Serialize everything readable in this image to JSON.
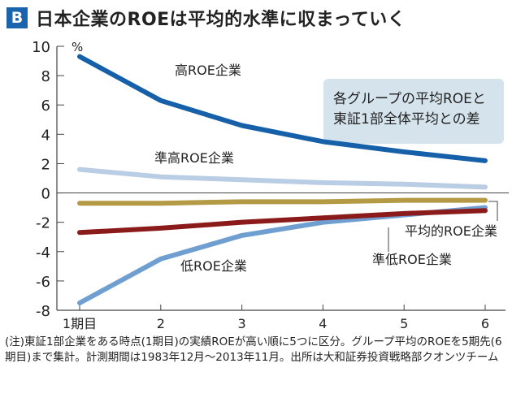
{
  "header": {
    "badge": "B",
    "title": "日本企業のROEは平均的水準に収まっていく"
  },
  "chart_data": {
    "type": "line",
    "title": "日本企業のROEは平均的水準に収まっていく",
    "ylabel": "%",
    "xlabel": "",
    "categories": [
      "1期目",
      "2",
      "3",
      "4",
      "5",
      "6"
    ],
    "ylim": [
      -8,
      10
    ],
    "yticks": [
      10,
      8,
      6,
      4,
      2,
      0,
      -2,
      -4,
      -6,
      -8
    ],
    "grid": false,
    "annotation": "各グループの平均ROEと東証1部全体平均との差",
    "series": [
      {
        "name": "高ROE企業",
        "color": "#1560a8",
        "values": [
          9.3,
          6.3,
          4.6,
          3.5,
          2.8,
          2.2
        ]
      },
      {
        "name": "準高ROE企業",
        "color": "#b9cde4",
        "values": [
          1.6,
          1.1,
          0.9,
          0.7,
          0.6,
          0.4
        ]
      },
      {
        "name": "平均的ROE企業",
        "color": "#b59a45",
        "values": [
          -0.7,
          -0.7,
          -0.6,
          -0.6,
          -0.5,
          -0.5
        ]
      },
      {
        "name": "準低ROE企業",
        "color": "#8b1a1a",
        "values": [
          -2.7,
          -2.4,
          -2.0,
          -1.7,
          -1.4,
          -1.2
        ]
      },
      {
        "name": "低ROE企業",
        "color": "#6f9fd0",
        "values": [
          -7.5,
          -4.5,
          -2.9,
          -2.0,
          -1.5,
          -1.0
        ]
      }
    ]
  },
  "footnote": "(注)東証1部企業をある時点(1期目)の実績ROEが高い順に5つに区分。グループ平均のROEを5期先(6期目)まで集計。計測期間は1983年12月〜2013年11月。出所は大和証券投資戦略部クオンツチーム"
}
